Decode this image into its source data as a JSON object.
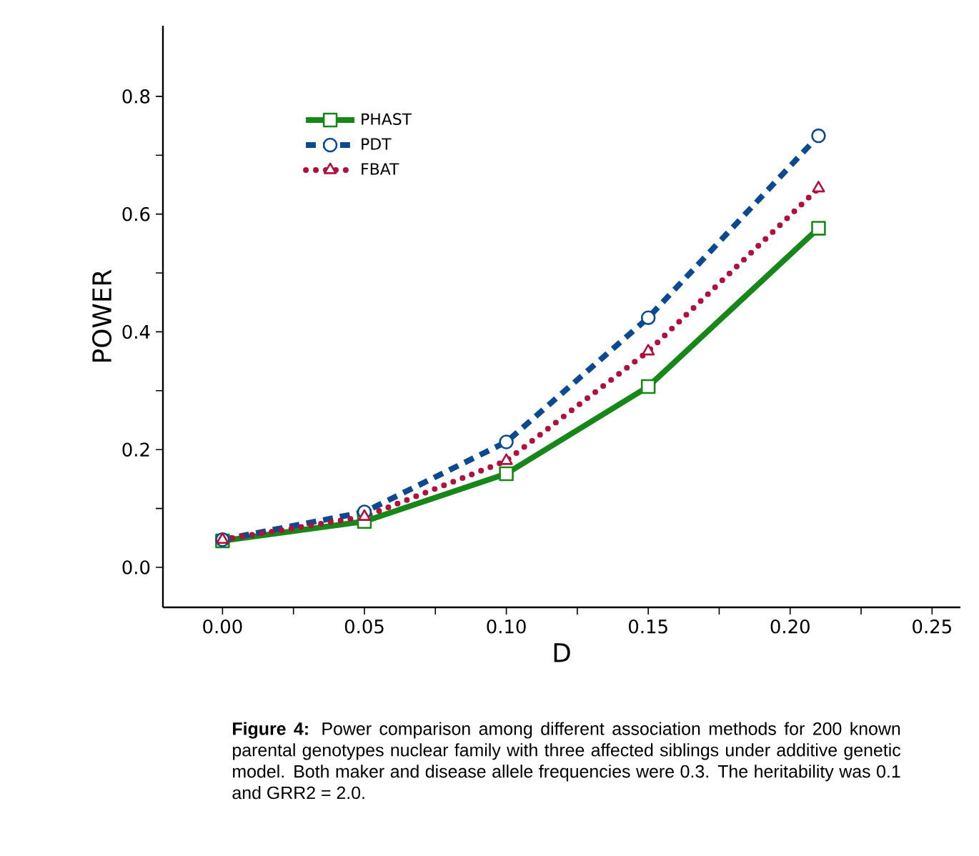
{
  "chart_data": {
    "type": "line",
    "xlabel": "D",
    "ylabel": "POWER",
    "x": [
      0.0,
      0.05,
      0.1,
      0.15,
      0.21
    ],
    "series": [
      {
        "name": "PHAST",
        "color": "#17871a",
        "marker": "square",
        "line_style": "solid",
        "values": [
          0.045,
          0.078,
          0.159,
          0.307,
          0.576
        ]
      },
      {
        "name": "PDT",
        "color": "#0b4a8e",
        "marker": "circle",
        "line_style": "dashed",
        "values": [
          0.047,
          0.094,
          0.213,
          0.424,
          0.733
        ]
      },
      {
        "name": "FBAT",
        "color": "#b0103c",
        "marker": "triangle",
        "line_style": "dotted",
        "values": [
          0.047,
          0.086,
          0.181,
          0.367,
          0.644
        ]
      }
    ],
    "xlim": [
      -0.021,
      0.26
    ],
    "ylim": [
      -0.068,
      0.92
    ],
    "xticks": [
      {
        "value": 0,
        "label": "0.00"
      },
      {
        "value": 0.025,
        "label": null
      },
      {
        "value": 0.05,
        "label": "0.05"
      },
      {
        "value": 0.075,
        "label": null
      },
      {
        "value": 0.1,
        "label": "0.10"
      },
      {
        "value": 0.125,
        "label": null
      },
      {
        "value": 0.15,
        "label": "0.15"
      },
      {
        "value": 0.175,
        "label": null
      },
      {
        "value": 0.2,
        "label": "0.20"
      },
      {
        "value": 0.225,
        "label": null
      },
      {
        "value": 0.25,
        "label": "0.25"
      }
    ],
    "yticks": [
      {
        "value": 0,
        "label": "0.0"
      },
      {
        "value": 0.1,
        "label": null
      },
      {
        "value": 0.2,
        "label": "0.2"
      },
      {
        "value": 0.3,
        "label": null
      },
      {
        "value": 0.4,
        "label": "0.4"
      },
      {
        "value": 0.5,
        "label": null
      },
      {
        "value": 0.6,
        "label": "0.6"
      },
      {
        "value": 0.7,
        "label": null
      },
      {
        "value": 0.8,
        "label": "0.8"
      }
    ],
    "grid": false,
    "legend": "top left",
    "annotations": [
      "**Figure 4:** Power comparison among different association methods for 200 known parental genotypes nuclear family with three affected siblings under additive genetic model. Both maker and disease allele frequencies were 0.3. The heritability was 0.1 and GRR2 = 2.0."
    ]
  }
}
